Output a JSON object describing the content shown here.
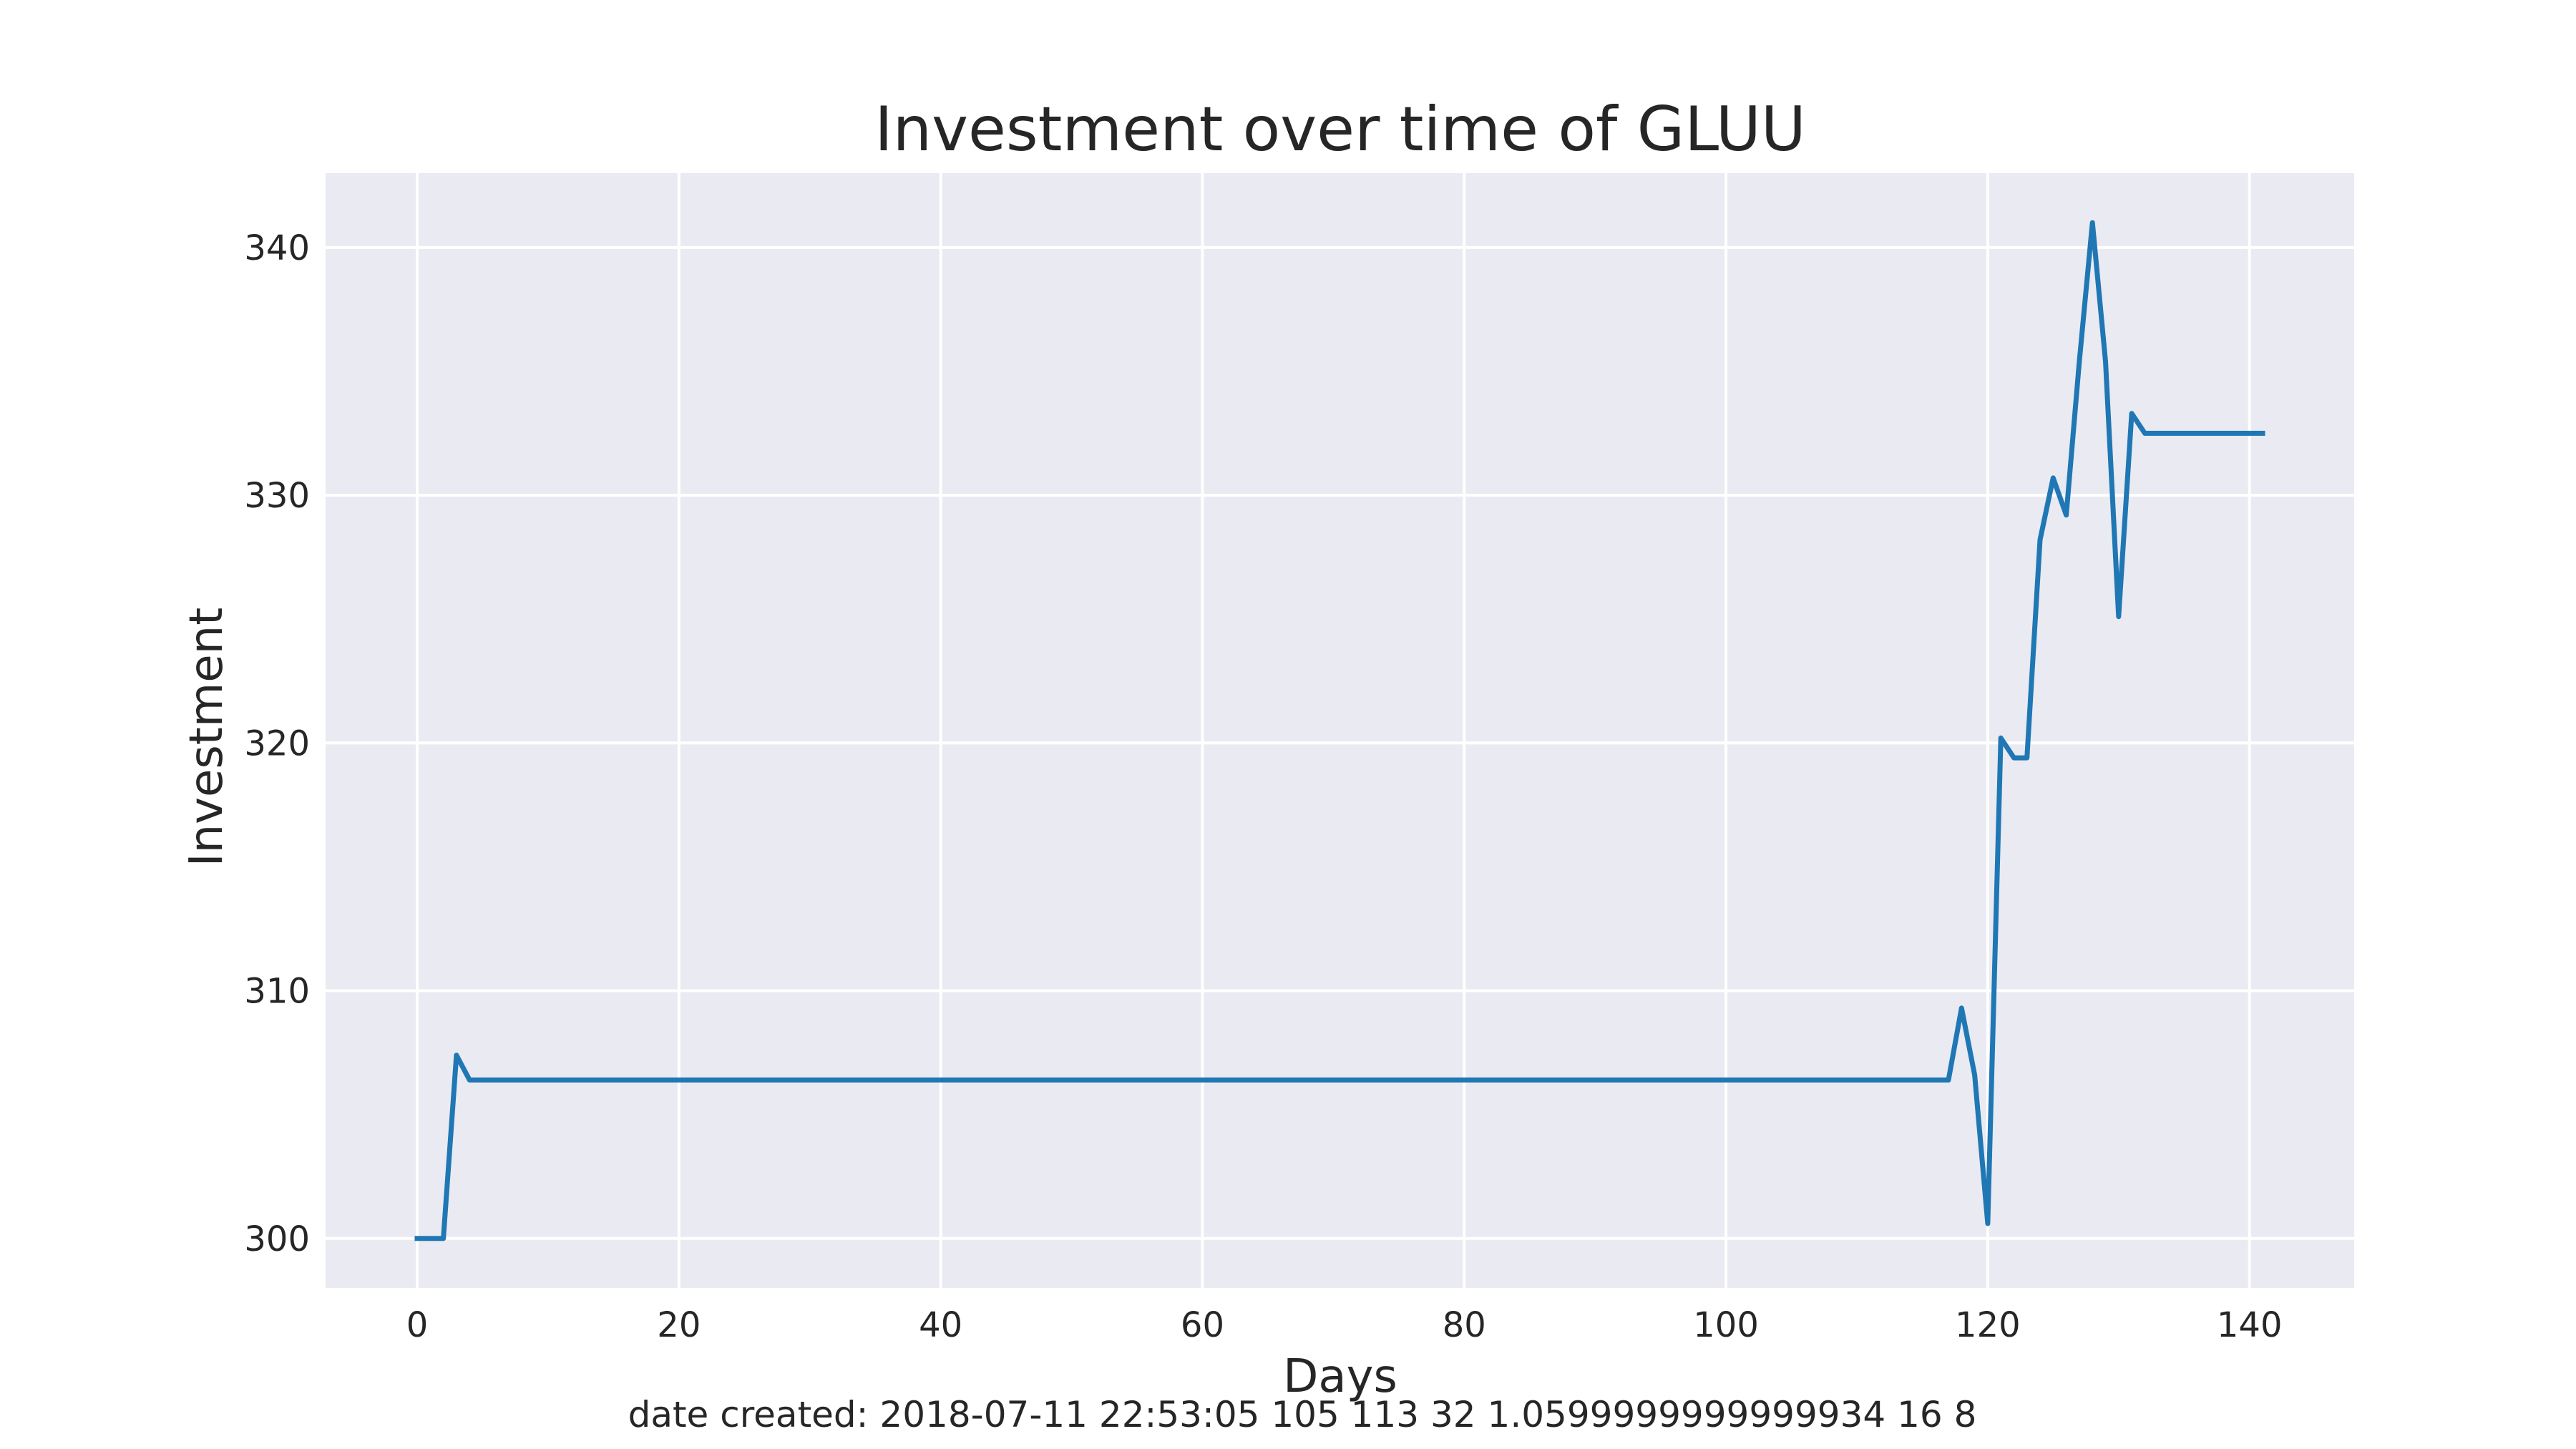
{
  "chart_data": {
    "type": "line",
    "title": "Investment over time of GLUU",
    "xlabel": "Days",
    "ylabel": "Investment",
    "caption": "date created: 2018-07-11 22:53:05 105 113 32 1.0599999999999934 16 8",
    "xlim": [
      -7,
      148
    ],
    "ylim": [
      298,
      343
    ],
    "xticks": [
      0,
      20,
      40,
      60,
      80,
      100,
      120,
      140
    ],
    "yticks": [
      300,
      310,
      320,
      330,
      340
    ],
    "grid": true,
    "background": "#eaeaf2",
    "line_color": "#1f77b4",
    "series": [
      {
        "x": [
          0,
          1,
          2,
          3,
          4,
          117,
          118,
          119,
          120,
          121,
          122,
          123,
          124,
          125,
          126,
          127,
          128,
          129,
          130,
          131,
          132,
          141
        ],
        "y": [
          300.0,
          300.0,
          300.0,
          307.4,
          306.4,
          306.4,
          309.3,
          306.6,
          300.6,
          320.2,
          319.4,
          319.4,
          328.2,
          330.7,
          329.2,
          335.4,
          341.0,
          335.4,
          325.1,
          333.3,
          332.5,
          332.5
        ]
      }
    ]
  }
}
